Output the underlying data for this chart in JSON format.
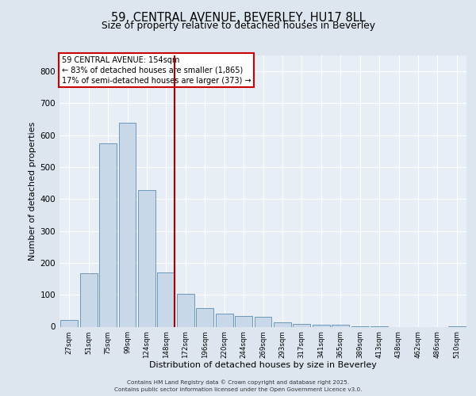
{
  "title1": "59, CENTRAL AVENUE, BEVERLEY, HU17 8LL",
  "title2": "Size of property relative to detached houses in Beverley",
  "xlabel": "Distribution of detached houses by size in Beverley",
  "ylabel": "Number of detached properties",
  "categories": [
    "27sqm",
    "51sqm",
    "75sqm",
    "99sqm",
    "124sqm",
    "148sqm",
    "172sqm",
    "196sqm",
    "220sqm",
    "244sqm",
    "269sqm",
    "293sqm",
    "317sqm",
    "341sqm",
    "365sqm",
    "389sqm",
    "413sqm",
    "438sqm",
    "462sqm",
    "486sqm",
    "510sqm"
  ],
  "values": [
    20,
    168,
    575,
    638,
    428,
    170,
    102,
    58,
    42,
    33,
    30,
    14,
    8,
    5,
    5,
    1,
    1,
    0,
    0,
    0,
    1
  ],
  "bar_color": "#c8d8e8",
  "bar_edge_color": "#5b8db0",
  "vline_color": "#aa0000",
  "annotation_title": "59 CENTRAL AVENUE: 154sqm",
  "annotation_line1": "← 83% of detached houses are smaller (1,865)",
  "annotation_line2": "17% of semi-detached houses are larger (373) →",
  "annotation_box_color": "#ffffff",
  "annotation_box_edge": "#cc0000",
  "ylim": [
    0,
    850
  ],
  "yticks": [
    0,
    100,
    200,
    300,
    400,
    500,
    600,
    700,
    800
  ],
  "bg_color": "#dde6ef",
  "plot_bg_color": "#e8eef5",
  "grid_color": "#ffffff",
  "footer1": "Contains HM Land Registry data © Crown copyright and database right 2025.",
  "footer2": "Contains public sector information licensed under the Open Government Licence v3.0."
}
